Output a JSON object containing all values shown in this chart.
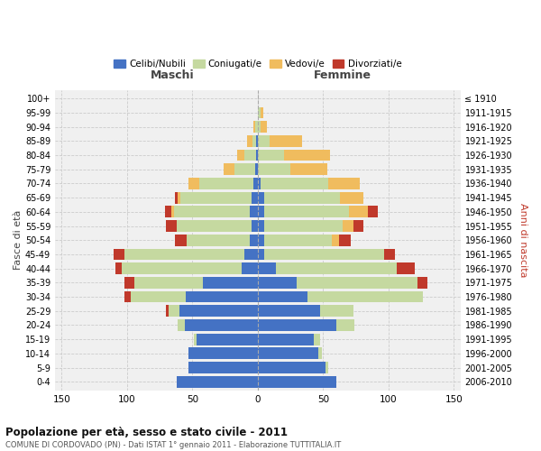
{
  "age_groups": [
    "0-4",
    "5-9",
    "10-14",
    "15-19",
    "20-24",
    "25-29",
    "30-34",
    "35-39",
    "40-44",
    "45-49",
    "50-54",
    "55-59",
    "60-64",
    "65-69",
    "70-74",
    "75-79",
    "80-84",
    "85-89",
    "90-94",
    "95-99",
    "100+"
  ],
  "birth_years": [
    "2006-2010",
    "2001-2005",
    "1996-2000",
    "1991-1995",
    "1986-1990",
    "1981-1985",
    "1976-1980",
    "1971-1975",
    "1966-1970",
    "1961-1965",
    "1956-1960",
    "1951-1955",
    "1946-1950",
    "1941-1945",
    "1936-1940",
    "1931-1935",
    "1926-1930",
    "1921-1925",
    "1916-1920",
    "1911-1915",
    "≤ 1910"
  ],
  "male_celibi": [
    62,
    53,
    53,
    47,
    56,
    60,
    55,
    42,
    12,
    10,
    6,
    5,
    6,
    5,
    3,
    2,
    1,
    1,
    0,
    0,
    0
  ],
  "male_coniugati": [
    0,
    0,
    0,
    2,
    5,
    8,
    42,
    52,
    92,
    92,
    48,
    57,
    58,
    54,
    42,
    16,
    9,
    3,
    2,
    0,
    0
  ],
  "male_vedovi": [
    0,
    0,
    0,
    0,
    0,
    0,
    0,
    0,
    0,
    0,
    0,
    0,
    2,
    2,
    8,
    8,
    6,
    4,
    1,
    0,
    0
  ],
  "male_divorziati": [
    0,
    0,
    0,
    0,
    0,
    2,
    5,
    8,
    5,
    8,
    9,
    8,
    5,
    2,
    0,
    0,
    0,
    0,
    0,
    0,
    0
  ],
  "female_nubili": [
    60,
    52,
    46,
    43,
    60,
    48,
    38,
    30,
    14,
    5,
    5,
    5,
    5,
    5,
    2,
    0,
    0,
    0,
    0,
    0,
    0
  ],
  "female_coniugate": [
    0,
    2,
    3,
    5,
    14,
    25,
    88,
    92,
    92,
    92,
    52,
    60,
    65,
    58,
    52,
    25,
    20,
    9,
    2,
    2,
    0
  ],
  "female_vedove": [
    0,
    0,
    0,
    0,
    0,
    0,
    0,
    0,
    0,
    0,
    5,
    8,
    14,
    18,
    24,
    28,
    35,
    25,
    5,
    2,
    0
  ],
  "female_divorziate": [
    0,
    0,
    0,
    0,
    0,
    0,
    0,
    8,
    14,
    8,
    9,
    8,
    8,
    0,
    0,
    0,
    0,
    0,
    0,
    0,
    0
  ],
  "color_celibi": "#4472c4",
  "color_coniugati": "#c5d9a0",
  "color_vedovi": "#f0bc5e",
  "color_divorziati": "#c0392b",
  "xlim": 155,
  "title": "Popolazione per età, sesso e stato civile - 2011",
  "subtitle": "COMUNE DI CORDOVADO (PN) - Dati ISTAT 1° gennaio 2011 - Elaborazione TUTTITALIA.IT",
  "ylabel_left": "Fasce di età",
  "ylabel_right": "Anni di nascita",
  "label_maschi": "Maschi",
  "label_femmine": "Femmine",
  "legend_labels": [
    "Celibi/Nubili",
    "Coniugati/e",
    "Vedovi/e",
    "Divorziati/e"
  ],
  "bg_color": "#f0f0f0"
}
